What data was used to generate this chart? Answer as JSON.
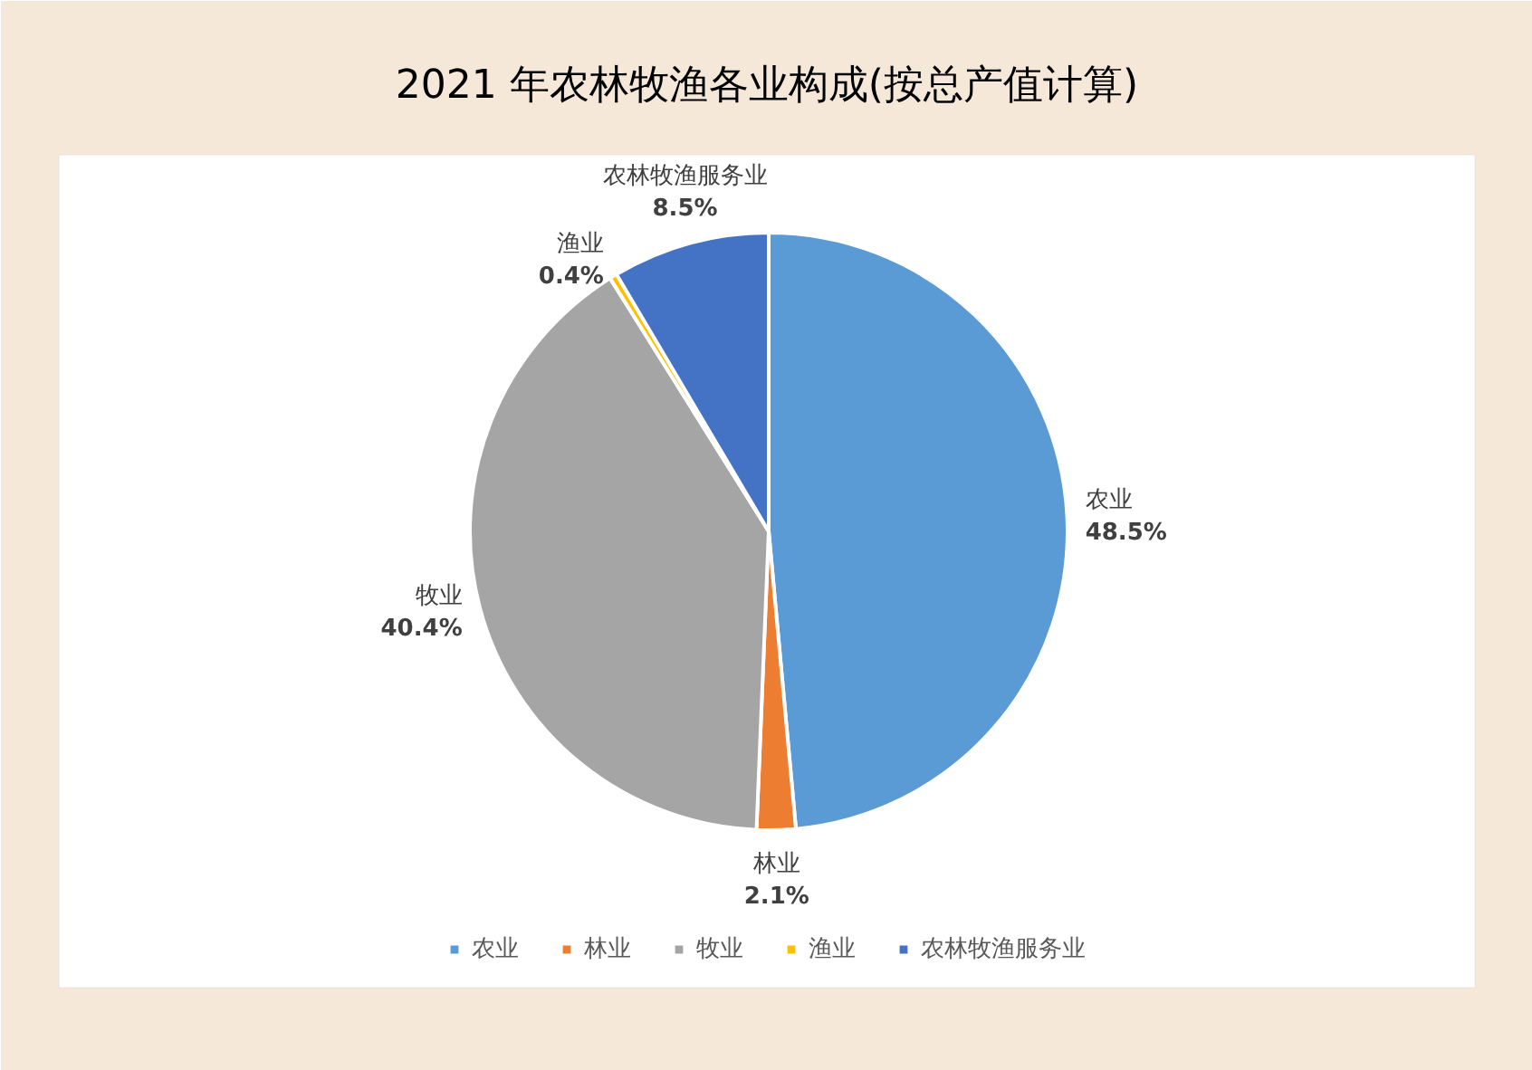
{
  "chart_data": {
    "type": "pie",
    "title": "2021 年农林牧渔各业构成(按总产值计算)",
    "categories": [
      "农业",
      "林业",
      "牧业",
      "渔业",
      "农林牧渔服务业"
    ],
    "values": [
      48.5,
      2.1,
      40.4,
      0.4,
      8.5
    ],
    "colors": [
      "#5b9bd5",
      "#ed7d31",
      "#a5a5a5",
      "#ffc000",
      "#4472c4"
    ],
    "value_labels": [
      "48.5%",
      "2.1%",
      "40.4%",
      "0.4%",
      "8.5%"
    ],
    "legend": "bottom"
  }
}
